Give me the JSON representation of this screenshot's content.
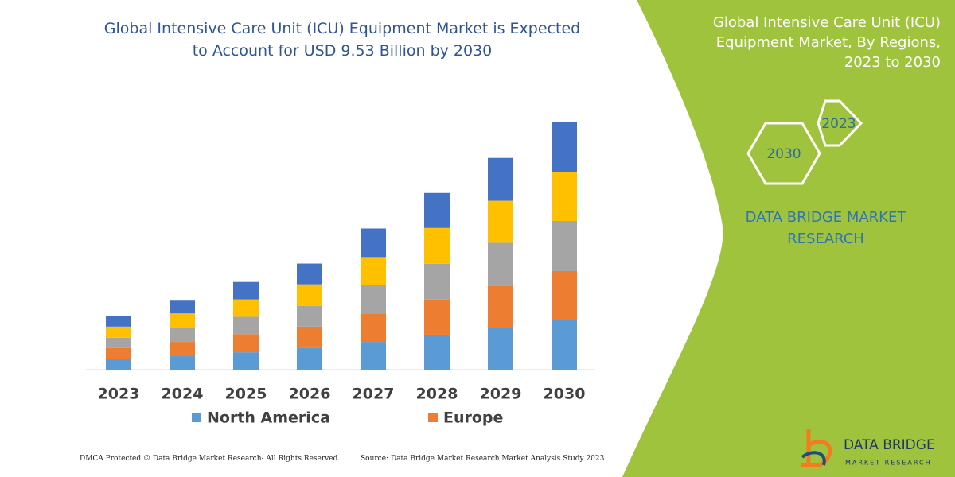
{
  "chart_data": {
    "type": "bar",
    "stacked": true,
    "title": "Global Intensive Care Unit (ICU) Equipment Market is Expected to Account for USD 9.53 Billion by 2030",
    "categories": [
      "2023",
      "2024",
      "2025",
      "2026",
      "2027",
      "2028",
      "2029",
      "2030"
    ],
    "series": [
      {
        "name": "North America",
        "color": "#5b9bd5",
        "values": [
          0.4,
          0.52,
          0.67,
          0.83,
          1.07,
          1.35,
          1.62,
          1.9
        ]
      },
      {
        "name": "Europe",
        "color": "#ed7d31",
        "values": [
          0.43,
          0.55,
          0.7,
          0.83,
          1.1,
          1.35,
          1.62,
          1.9
        ]
      },
      {
        "color": "#a5a5a5",
        "values": [
          0.4,
          0.55,
          0.67,
          0.8,
          1.1,
          1.38,
          1.65,
          1.93
        ]
      },
      {
        "color": "#ffc000",
        "values": [
          0.43,
          0.55,
          0.67,
          0.83,
          1.07,
          1.38,
          1.62,
          1.9
        ]
      },
      {
        "color": "#4472c4",
        "values": [
          0.4,
          0.52,
          0.67,
          0.8,
          1.1,
          1.35,
          1.65,
          1.9
        ]
      }
    ]
  },
  "panel": {
    "title": "Global Intensive Care Unit (ICU) Equipment Market, By Regions, 2023 to 2030",
    "hexagons": [
      "2023",
      "2030"
    ],
    "brand": "DATA BRIDGE MARKET RESEARCH"
  },
  "logo": {
    "name": "DATA BRIDGE",
    "tagline": "MARKET RESEARCH"
  },
  "footer": {
    "left": "DMCA Protected © Data Bridge Market Research- All Rights Reserved.",
    "right": "Source: Data Bridge Market Research Market Analysis Study 2023"
  }
}
